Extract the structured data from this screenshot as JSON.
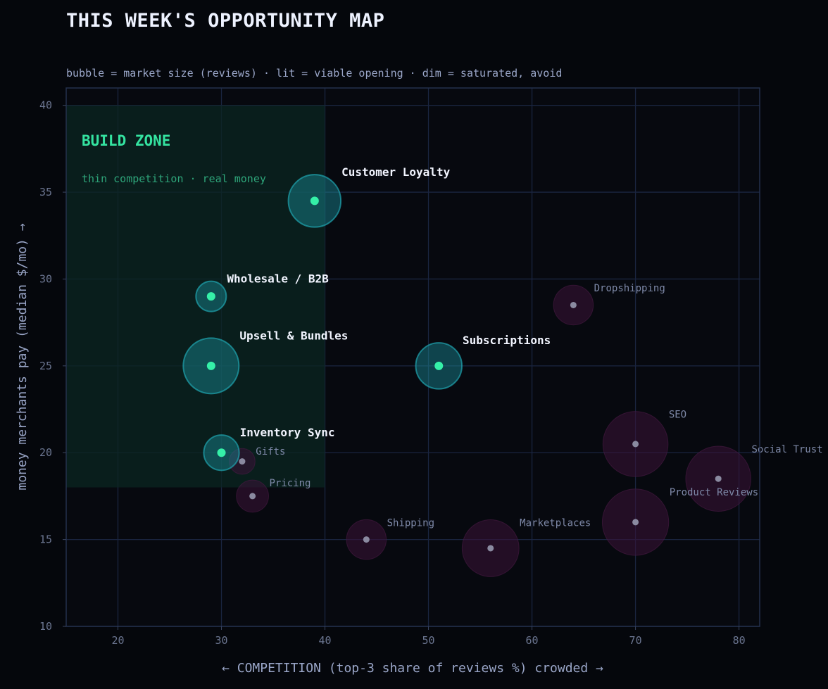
{
  "title": "THIS WEEK'S OPPORTUNITY MAP",
  "subtitle": "bubble = market size (reviews) · lit = viable opening · dim = saturated, avoid",
  "zone": {
    "title": "BUILD ZONE",
    "subtitle": "thin competition · real money",
    "x_range": [
      15,
      40
    ],
    "y_range": [
      18,
      40
    ]
  },
  "colors": {
    "background": "#05070c",
    "plot_bg": "#07090f",
    "grid": "#1a2540",
    "axis_text": "#6b7590",
    "label_text": "#9aa6c8",
    "zone_fill": "#0b2622",
    "zone_title": "#34e3a0",
    "zone_subtitle": "#2ea57a",
    "viable_dot": "#35f0a8",
    "viable_bubble": "#1a8d9a",
    "viable_label": "#f2f5ff",
    "dim_dot": "#8a8aa0",
    "dim_bubble": "#3a1238",
    "dim_label": "#7e89a8"
  },
  "chart_data": {
    "type": "scatter",
    "xlabel": "← COMPETITION   (top-3 share of reviews %)   crowded →",
    "ylabel": "money merchants pay  (median $/mo) →",
    "xlim": [
      15,
      82
    ],
    "ylim": [
      10,
      41
    ],
    "xticks": [
      20,
      30,
      40,
      50,
      60,
      70,
      80
    ],
    "yticks": [
      10,
      15,
      20,
      25,
      30,
      35,
      40
    ],
    "grid": true,
    "points": [
      {
        "label": "Customer Loyalty",
        "x": 39,
        "y": 34.5,
        "size": 0.65,
        "viable": true
      },
      {
        "label": "Wholesale / B2B",
        "x": 29,
        "y": 29,
        "size": 0.3,
        "viable": true
      },
      {
        "label": "Upsell & Bundles",
        "x": 29,
        "y": 25,
        "size": 0.7,
        "viable": true
      },
      {
        "label": "Subscriptions",
        "x": 51,
        "y": 25,
        "size": 0.55,
        "viable": true
      },
      {
        "label": "Inventory Sync",
        "x": 30,
        "y": 20,
        "size": 0.38,
        "viable": true
      },
      {
        "label": "Gifts",
        "x": 32,
        "y": 19.5,
        "size": 0.23,
        "viable": false
      },
      {
        "label": "Pricing",
        "x": 33,
        "y": 17.5,
        "size": 0.33,
        "viable": false
      },
      {
        "label": "Dropshipping",
        "x": 64,
        "y": 28.5,
        "size": 0.45,
        "viable": false
      },
      {
        "label": "SEO",
        "x": 70,
        "y": 20.5,
        "size": 0.85,
        "viable": false
      },
      {
        "label": "Social Trust",
        "x": 78,
        "y": 18.5,
        "size": 0.85,
        "viable": false
      },
      {
        "label": "Product Reviews",
        "x": 70,
        "y": 16,
        "size": 0.87,
        "viable": false
      },
      {
        "label": "Shipping",
        "x": 44,
        "y": 15,
        "size": 0.45,
        "viable": false
      },
      {
        "label": "Marketplaces",
        "x": 56,
        "y": 14.5,
        "size": 0.72,
        "viable": false
      }
    ]
  }
}
